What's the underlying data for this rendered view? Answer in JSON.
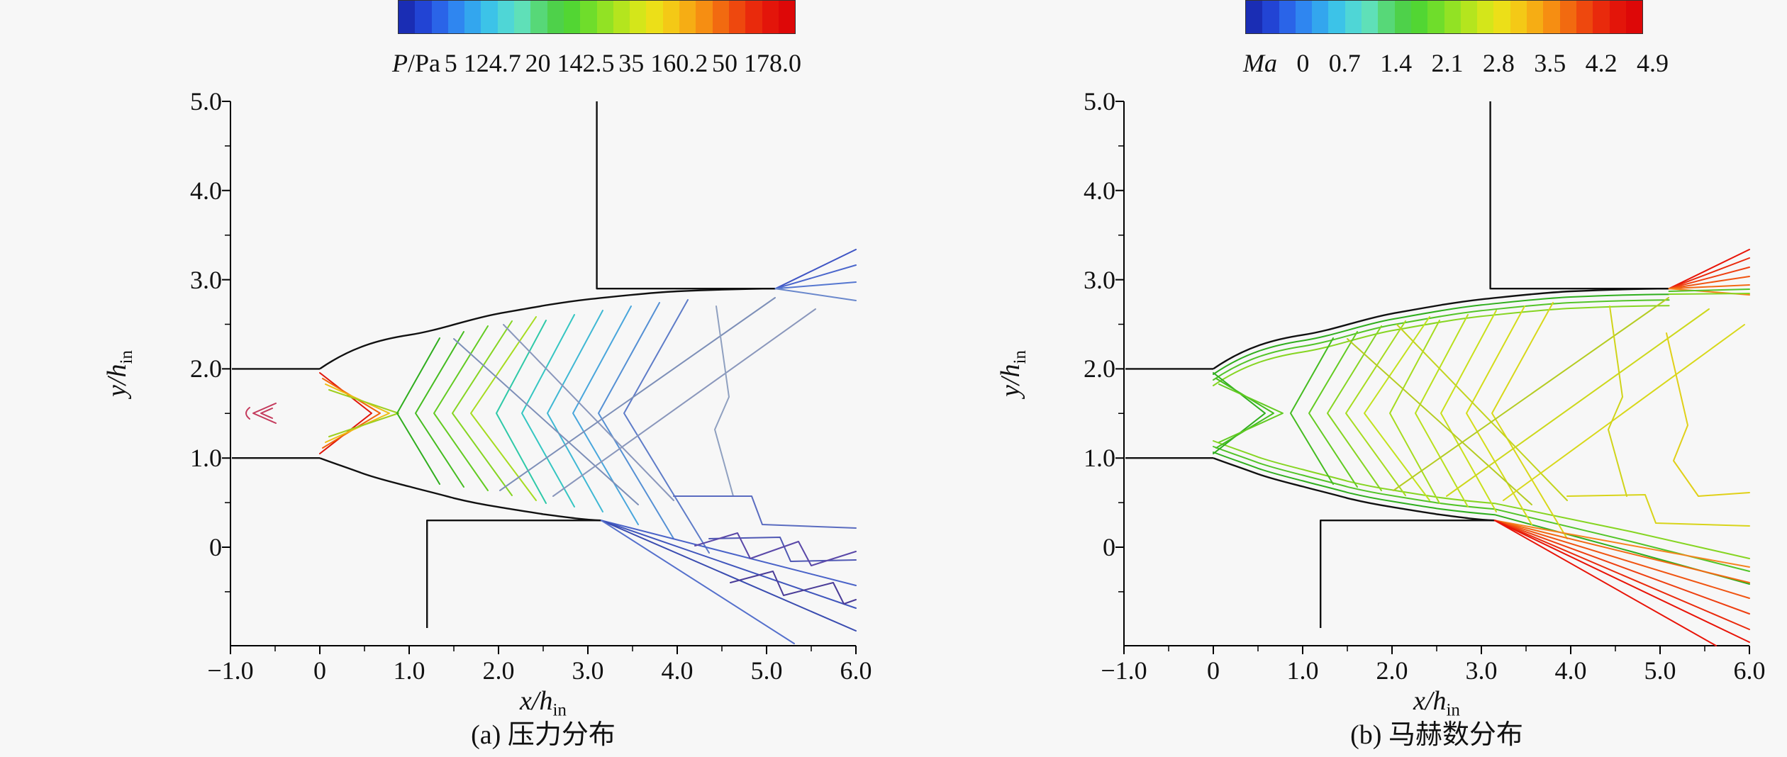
{
  "figure": {
    "background": "#f7f7f7",
    "description": "Two-panel CFD contour figure of a supersonic nozzle/ejector flow field: (a) pressure contours, (b) Mach number contours."
  },
  "colorbar_colors": [
    "#1a2db4",
    "#2244d4",
    "#2a64e8",
    "#2f86f0",
    "#33a6ee",
    "#3cc3e8",
    "#4fd6d6",
    "#5fe0b8",
    "#57d878",
    "#4ed14a",
    "#52d633",
    "#6fdd2b",
    "#92e224",
    "#b4e51e",
    "#d4e61a",
    "#ecdf18",
    "#f4c916",
    "#f6ad14",
    "#f68e12",
    "#f26a10",
    "#ee480e",
    "#e92a0c",
    "#e3150a",
    "#dd0808"
  ],
  "chart_data": [
    {
      "type": "contour",
      "panel": "a",
      "caption": "(a) 压力分布",
      "quantity": "pressure",
      "unit_label": "P/Pa",
      "unit_italic": "P",
      "unit_rest": "/Pa",
      "colorbar_tick_values": [
        5124.7,
        20142.5,
        35160.2,
        50178.0
      ],
      "colorbar_tick_labels": [
        "5 124.7",
        "20 142.5",
        "35 160.2",
        "50 178.0"
      ],
      "colorbar_position": "top",
      "xlabel": "x/h_in",
      "xlabel_var": "x/h",
      "xlabel_sub": "in",
      "ylabel": "y/h_in",
      "ylabel_var": "y/h",
      "ylabel_sub": "in",
      "xlim": [
        -1.0,
        6.0
      ],
      "ylim": [
        -1.1,
        5.0
      ],
      "x_ticks": [
        -1.0,
        0,
        1.0,
        2.0,
        3.0,
        4.0,
        5.0,
        6.0
      ],
      "x_tick_labels": [
        "−1.0",
        "0",
        "1.0",
        "2.0",
        "3.0",
        "4.0",
        "5.0",
        "6.0"
      ],
      "y_ticks": [
        5.0,
        4.0,
        3.0,
        2.0,
        1.0,
        0
      ],
      "y_tick_labels": [
        "5.0",
        "4.0",
        "3.0",
        "2.0",
        "1.0",
        "0"
      ],
      "grid": false,
      "geometry_note": "Inlet channel walls at y=1.0 and y=2.0 for x<0; diverging nozzle walls from (0,2.0) to (5.1,2.9) and from (0,1.0) to (3.15,0.3); upper step wall x=3.1 from y=5.0 to y=2.9; lower step wall x=1.2 from y=-0.9 to y=0.3. Pressure contours: red/green shock-cell fan at nozzle exit, cyan expansion contours mid-field, blue/purple shock reflections downstream, crimson recirculation marker near (-0.7,1.5)."
    },
    {
      "type": "contour",
      "panel": "b",
      "caption": "(b) 马赫数分布",
      "quantity": "Mach number",
      "unit_label": "Ma",
      "unit_italic": "Ma",
      "unit_rest": "",
      "colorbar_tick_values": [
        0,
        0.7,
        1.4,
        2.1,
        2.8,
        3.5,
        4.2,
        4.9
      ],
      "colorbar_tick_labels": [
        "0",
        "0.7",
        "1.4",
        "2.1",
        "2.8",
        "3.5",
        "4.2",
        "4.9"
      ],
      "colorbar_position": "top",
      "xlabel": "x/h_in",
      "xlabel_var": "x/h",
      "xlabel_sub": "in",
      "ylabel": "y/h_in",
      "ylabel_var": "y/h",
      "ylabel_sub": "in",
      "xlim": [
        -1.0,
        6.0
      ],
      "ylim": [
        -1.1,
        5.0
      ],
      "x_ticks": [
        -1.0,
        0,
        1.0,
        2.0,
        3.0,
        4.0,
        5.0,
        6.0
      ],
      "x_tick_labels": [
        "−1.0",
        "0",
        "1.0",
        "2.0",
        "3.0",
        "4.0",
        "5.0",
        "6.0"
      ],
      "y_ticks": [
        5.0,
        4.0,
        3.0,
        2.0,
        1.0,
        0
      ],
      "y_tick_labels": [
        "5.0",
        "4.0",
        "3.0",
        "2.0",
        "1.0",
        "0"
      ],
      "grid": false,
      "geometry_note": "Same geometry as panel (a). Mach contours: dense green bands hugging both nozzle walls, green/yellow shock-cell chevrons in the core, yellow diagonals downstream, red supersonic fans emanating from (5.1,2.9) toward upper right and from (3.15,0.3) toward lower right."
    }
  ]
}
